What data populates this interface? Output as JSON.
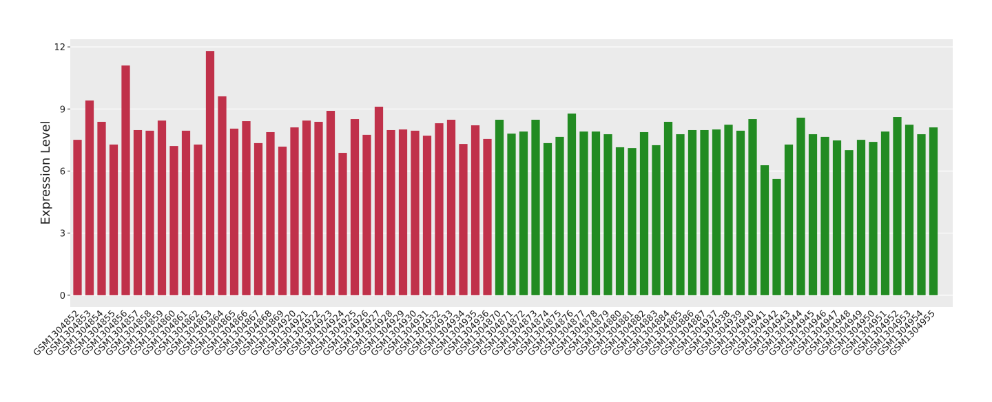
{
  "chart_data": {
    "type": "bar",
    "y_label": "Expression Level",
    "categories": [
      "GSM1304852",
      "GSM1304853",
      "GSM1304854",
      "GSM1304855",
      "GSM1304856",
      "GSM1304857",
      "GSM1304858",
      "GSM1304859",
      "GSM1304860",
      "GSM1304861",
      "GSM1304862",
      "GSM1304863",
      "GSM1304864",
      "GSM1304865",
      "GSM1304866",
      "GSM1304867",
      "GSM1304868",
      "GSM1304869",
      "GSM1304920",
      "GSM1304921",
      "GSM1304922",
      "GSM1304923",
      "GSM1304924",
      "GSM1304925",
      "GSM1304926",
      "GSM1304927",
      "GSM1304928",
      "GSM1304929",
      "GSM1304930",
      "GSM1304931",
      "GSM1304932",
      "GSM1304933",
      "GSM1304934",
      "GSM1304935",
      "GSM1304936",
      "GSM1304870",
      "GSM1304871",
      "GSM1304872",
      "GSM1304873",
      "GSM1304874",
      "GSM1304875",
      "GSM1304876",
      "GSM1304877",
      "GSM1304878",
      "GSM1304879",
      "GSM1304880",
      "GSM1304881",
      "GSM1304882",
      "GSM1304883",
      "GSM1304884",
      "GSM1304885",
      "GSM1304886",
      "GSM1304887",
      "GSM1304937",
      "GSM1304938",
      "GSM1304939",
      "GSM1304940",
      "GSM1304941",
      "GSM1304942",
      "GSM1304943",
      "GSM1304944",
      "GSM1304945",
      "GSM1304946",
      "GSM1304947",
      "GSM1304948",
      "GSM1304949",
      "GSM1304950",
      "GSM1304951",
      "GSM1304952",
      "GSM1304953",
      "GSM1304954",
      "GSM1304955"
    ],
    "values": [
      7.51,
      9.41,
      8.38,
      7.28,
      11.1,
      7.98,
      7.95,
      8.44,
      7.21,
      7.95,
      7.28,
      11.8,
      9.61,
      8.05,
      8.41,
      7.35,
      7.88,
      7.18,
      8.11,
      8.44,
      8.38,
      8.91,
      6.88,
      8.51,
      7.75,
      9.11,
      7.98,
      8.01,
      7.95,
      7.71,
      8.31,
      8.48,
      7.31,
      8.21,
      7.55,
      8.48,
      7.81,
      7.91,
      8.48,
      7.35,
      7.65,
      8.78,
      7.91,
      7.91,
      7.78,
      7.15,
      7.11,
      7.88,
      7.25,
      8.38,
      7.78,
      7.98,
      7.98,
      8.01,
      8.24,
      7.95,
      8.51,
      6.28,
      5.62,
      7.28,
      8.58,
      7.78,
      7.65,
      7.48,
      7.01,
      7.51,
      7.41,
      7.91,
      8.61,
      8.24,
      7.78,
      8.11
    ],
    "colors": [
      "#c0314a",
      "#c0314a",
      "#c0314a",
      "#c0314a",
      "#c0314a",
      "#c0314a",
      "#c0314a",
      "#c0314a",
      "#c0314a",
      "#c0314a",
      "#c0314a",
      "#c0314a",
      "#c0314a",
      "#c0314a",
      "#c0314a",
      "#c0314a",
      "#c0314a",
      "#c0314a",
      "#c0314a",
      "#c0314a",
      "#c0314a",
      "#c0314a",
      "#c0314a",
      "#c0314a",
      "#c0314a",
      "#c0314a",
      "#c0314a",
      "#c0314a",
      "#c0314a",
      "#c0314a",
      "#c0314a",
      "#c0314a",
      "#c0314a",
      "#c0314a",
      "#c0314a",
      "#228b22",
      "#228b22",
      "#228b22",
      "#228b22",
      "#228b22",
      "#228b22",
      "#228b22",
      "#228b22",
      "#228b22",
      "#228b22",
      "#228b22",
      "#228b22",
      "#228b22",
      "#228b22",
      "#228b22",
      "#228b22",
      "#228b22",
      "#228b22",
      "#228b22",
      "#228b22",
      "#228b22",
      "#228b22",
      "#228b22",
      "#228b22",
      "#228b22",
      "#228b22",
      "#228b22",
      "#228b22",
      "#228b22",
      "#228b22",
      "#228b22",
      "#228b22",
      "#228b22",
      "#228b22",
      "#228b22",
      "#228b22",
      "#228b22"
    ],
    "ylim": [
      -0.57,
      12.37
    ],
    "yticks": [
      0,
      3,
      6,
      9,
      12
    ],
    "grid": true
  }
}
